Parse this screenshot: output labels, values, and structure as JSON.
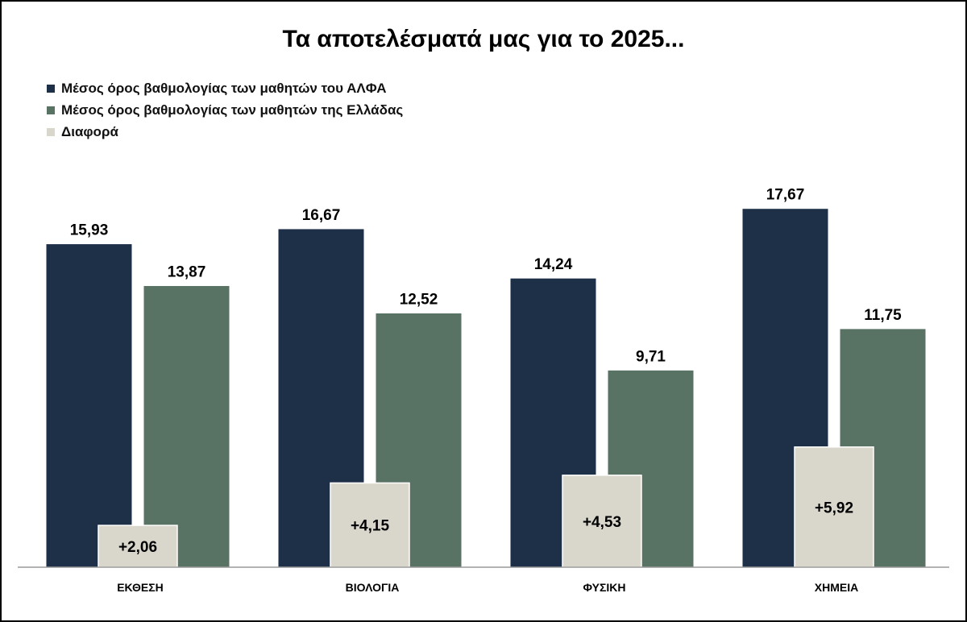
{
  "chart_data": {
    "type": "bar",
    "title": "Τα αποτελέσματά μας για το 2025...",
    "categories": [
      "ΕΚΘΕΣΗ",
      "ΒΙΟΛΟΓΙΑ",
      "ΦΥΣΙΚΗ",
      "ΧΗΜΕΙΑ"
    ],
    "series": [
      {
        "name": "Μέσος όρος βαθμολογίας των μαθητών του ΑΛΦΑ",
        "values": [
          15.93,
          16.67,
          14.24,
          17.67
        ],
        "labels": [
          "15,93",
          "16,67",
          "14,24",
          "17,67"
        ],
        "color": "#1e3048"
      },
      {
        "name": "Μέσος όρος βαθμολογίας των μαθητών της Ελλάδας",
        "values": [
          13.87,
          12.52,
          9.71,
          11.75
        ],
        "labels": [
          "13,87",
          "12,52",
          "9,71",
          "11,75"
        ],
        "color": "#587263"
      },
      {
        "name": "Διαφορά",
        "values": [
          2.06,
          4.15,
          4.53,
          5.92
        ],
        "labels": [
          "+2,06",
          "+4,15",
          "+4,53",
          "+5,92"
        ],
        "color": "#d9d6cc"
      }
    ],
    "ylim": [
      0,
      20
    ],
    "legend_position": "top-left",
    "grid": false
  }
}
